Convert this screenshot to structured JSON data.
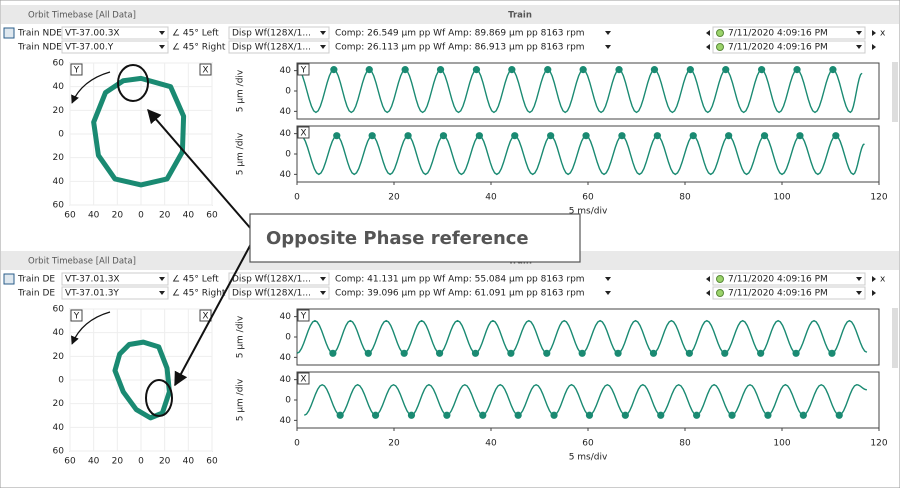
{
  "panels": [
    {
      "header": {
        "title": "Orbit Timebase  [All Data]",
        "center": "Train"
      },
      "rows": [
        {
          "name": "Train NDE",
          "probe": "VT-37.00.3X",
          "angle": "∠ 45° Left",
          "mode": "Disp Wf(128X/1...",
          "readout": "Comp: 26.549 µm pp Wf Amp: 89.869 µm pp 8163 rpm",
          "timestamp": "7/11/2020 4:09:16 PM",
          "close": "x"
        },
        {
          "name": "Train NDE",
          "probe": "VT-37.00.Y",
          "angle": "∠ 45° Right",
          "mode": "Disp Wf(128X/1...",
          "readout": "Comp: 26.113 µm pp Wf Amp: 86.913 µm pp 8163 rpm",
          "timestamp": "7/11/2020 4:09:16 PM"
        }
      ],
      "orbit": {
        "tag_left": "Y",
        "tag_right": "X",
        "color": "#1a8a72",
        "xlim": [
          -60,
          60
        ],
        "ylim": [
          -60,
          60
        ],
        "xticks": [
          {
            "value": -60,
            "label": "60"
          },
          {
            "value": -40,
            "label": "40"
          },
          {
            "value": -20,
            "label": "20"
          },
          0,
          20,
          40,
          60
        ],
        "yticks": [
          {
            "value": -60,
            "label": "60"
          },
          {
            "value": -40,
            "label": "40"
          },
          {
            "value": -20,
            "label": "20"
          },
          0,
          20,
          40,
          60
        ],
        "x": [
          0,
          25,
          36,
          35,
          22,
          0,
          -22,
          -36,
          -40,
          -30,
          -15
        ],
        "values": [
          47,
          40,
          15,
          -15,
          -38,
          -43,
          -38,
          -18,
          10,
          35,
          45
        ]
      },
      "waves": {
        "x_label": "5 ms/div",
        "xlim": [
          0,
          120
        ],
        "xticks": [
          0,
          20,
          40,
          60,
          80,
          100,
          120
        ],
        "ylim": [
          -55,
          55
        ],
        "yticks": [
          {
            "value": -40,
            "label": "40"
          },
          0,
          40
        ],
        "color": "#1a8a72",
        "traces": [
          {
            "tag": "Y",
            "y_label": "5 µm /div",
            "markers": "peak",
            "x": [
              0.2,
              3.9,
              7.6,
              11.2,
              14.9,
              18.6,
              22.3,
              25.9,
              29.6,
              33.3,
              37.0,
              40.6,
              44.3,
              48.0,
              51.7,
              55.3,
              59.0,
              62.7,
              66.4,
              70.0,
              73.7,
              77.4,
              81.1,
              84.7,
              88.4,
              92.1,
              95.8,
              99.4,
              103.1,
              106.8,
              110.5,
              114.1,
              116.5
            ],
            "values": [
              42,
              -42,
              42,
              -42,
              42,
              -42,
              42,
              -42,
              42,
              -42,
              42,
              -42,
              42,
              -42,
              42,
              -42,
              42,
              -42,
              42,
              -42,
              42,
              -42,
              42,
              -42,
              42,
              -42,
              42,
              -42,
              42,
              -42,
              42,
              -42,
              35
            ]
          },
          {
            "tag": "X",
            "y_label": "5 µm /div",
            "markers": "peak",
            "x": [
              0.8,
              4.5,
              8.2,
              11.8,
              15.5,
              19.2,
              22.9,
              26.5,
              30.2,
              33.9,
              37.6,
              41.2,
              44.9,
              48.6,
              52.3,
              55.9,
              59.6,
              63.3,
              67.0,
              70.6,
              74.3,
              78.0,
              81.7,
              85.3,
              89.0,
              92.7,
              96.4,
              100.0,
              103.7,
              107.4,
              111.1,
              114.7,
              117.0
            ],
            "values": [
              36,
              -40,
              36,
              -40,
              36,
              -40,
              36,
              -40,
              36,
              -40,
              36,
              -40,
              36,
              -40,
              36,
              -40,
              36,
              -40,
              36,
              -40,
              36,
              -40,
              36,
              -40,
              36,
              -40,
              36,
              -40,
              36,
              -40,
              36,
              -40,
              20
            ]
          }
        ]
      }
    },
    {
      "header": {
        "title": "Orbit Timebase  [All Data]",
        "center": "Train"
      },
      "rows": [
        {
          "name": "Train DE",
          "probe": "VT-37.01.3X",
          "angle": "∠ 45° Left",
          "mode": "Disp Wf(128X/1...",
          "readout": "Comp: 41.131 µm pp Wf Amp: 55.084 µm pp 8163 rpm",
          "timestamp": "7/11/2020 4:09:16 PM",
          "close": "x"
        },
        {
          "name": "Train DE",
          "probe": "VT-37.01.3Y",
          "angle": "∠ 45° Right",
          "mode": "Disp Wf(128X/1...",
          "readout": "Comp: 39.096 µm pp Wf Amp: 61.091 µm pp 8163 rpm",
          "timestamp": "7/11/2020 4:09:16 PM"
        }
      ],
      "orbit": {
        "tag_left": "Y",
        "tag_right": "X",
        "color": "#1a8a72",
        "xlim": [
          -60,
          60
        ],
        "ylim": [
          -60,
          60
        ],
        "xticks": [
          {
            "value": -60,
            "label": "60"
          },
          {
            "value": -40,
            "label": "40"
          },
          {
            "value": -20,
            "label": "20"
          },
          0,
          20,
          40,
          60
        ],
        "yticks": [
          {
            "value": -60,
            "label": "60"
          },
          {
            "value": -40,
            "label": "40"
          },
          {
            "value": -20,
            "label": "20"
          },
          0,
          20,
          40,
          60
        ],
        "x": [
          2,
          15,
          22,
          24,
          18,
          8,
          -4,
          -15,
          -22,
          -18,
          -10
        ],
        "values": [
          32,
          28,
          10,
          -10,
          -28,
          -32,
          -25,
          -10,
          8,
          22,
          30
        ]
      },
      "waves": {
        "x_label": "5 ms/div",
        "xlim": [
          0,
          120
        ],
        "xticks": [
          0,
          20,
          40,
          60,
          80,
          100,
          120
        ],
        "ylim": [
          -55,
          55
        ],
        "yticks": [
          {
            "value": -40,
            "label": "40"
          },
          0,
          40
        ],
        "color": "#1a8a72",
        "traces": [
          {
            "tag": "Y",
            "y_label": "5 µm /div",
            "markers": "trough",
            "x": [
              0.0,
              3.7,
              7.4,
              11.0,
              14.7,
              18.4,
              22.1,
              25.7,
              29.4,
              33.1,
              36.8,
              40.4,
              44.1,
              47.8,
              51.5,
              55.1,
              58.8,
              62.5,
              66.2,
              69.8,
              73.5,
              77.2,
              80.9,
              84.5,
              88.2,
              91.9,
              95.6,
              99.2,
              102.9,
              106.6,
              110.3,
              113.9,
              117.5
            ],
            "values": [
              -32,
              32,
              -32,
              32,
              -32,
              32,
              -32,
              32,
              -32,
              32,
              -32,
              32,
              -32,
              32,
              -32,
              32,
              -32,
              32,
              -32,
              32,
              -32,
              32,
              -32,
              32,
              -32,
              32,
              -32,
              32,
              -32,
              32,
              -32,
              32,
              -30
            ]
          },
          {
            "tag": "X",
            "y_label": "5 µm /div",
            "markers": "trough",
            "x": [
              1.5,
              5.2,
              8.9,
              12.5,
              16.2,
              19.9,
              23.6,
              27.2,
              30.9,
              34.6,
              38.3,
              41.9,
              45.6,
              49.3,
              53.0,
              56.6,
              60.3,
              64.0,
              67.7,
              71.3,
              75.0,
              78.7,
              82.4,
              86.0,
              89.7,
              93.4,
              97.1,
              100.7,
              104.4,
              108.1,
              111.8,
              115.4,
              117.5
            ],
            "values": [
              -30,
              30,
              -30,
              30,
              -30,
              30,
              -30,
              30,
              -30,
              30,
              -30,
              30,
              -30,
              30,
              -30,
              30,
              -30,
              30,
              -30,
              30,
              -30,
              30,
              -30,
              30,
              -30,
              30,
              -30,
              30,
              -30,
              30,
              -30,
              30,
              20
            ]
          }
        ]
      }
    }
  ],
  "callout": {
    "text": "Opposite  Phase reference"
  }
}
